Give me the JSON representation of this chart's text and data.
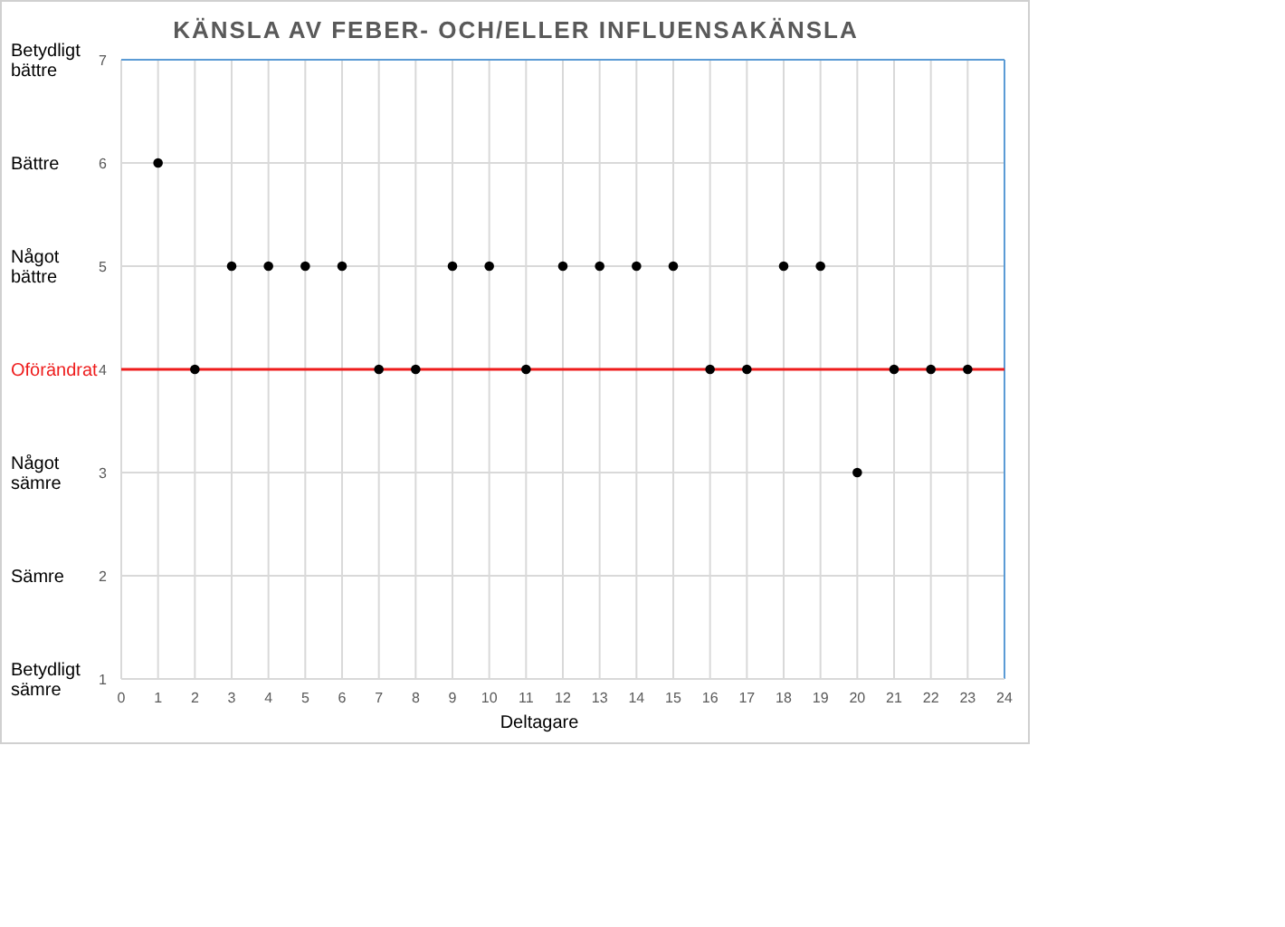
{
  "chart_data": {
    "type": "scatter",
    "title": "KÄNSLA AV FEBER- OCH/ELLER INFLUENSAKÄNSLA",
    "xlabel": "Deltagare",
    "x": [
      1,
      2,
      3,
      4,
      5,
      6,
      7,
      8,
      9,
      10,
      11,
      12,
      13,
      14,
      15,
      16,
      17,
      18,
      19,
      20,
      21,
      22,
      23
    ],
    "series": [
      {
        "color": "#000000",
        "values": [
          6,
          4,
          5,
          5,
          5,
          5,
          4,
          4,
          5,
          5,
          4,
          5,
          5,
          5,
          5,
          4,
          4,
          5,
          5,
          3,
          4,
          4,
          4
        ]
      }
    ],
    "xlim": [
      0,
      24
    ],
    "xticks": [
      0,
      1,
      2,
      3,
      4,
      5,
      6,
      7,
      8,
      9,
      10,
      11,
      12,
      13,
      14,
      15,
      16,
      17,
      18,
      19,
      20,
      21,
      22,
      23,
      24
    ],
    "ylim": [
      1,
      7
    ],
    "yticks": [
      1,
      2,
      3,
      4,
      5,
      6,
      7
    ],
    "grid": true,
    "marker": "circle",
    "ref_lines": [
      {
        "axis": "y",
        "value": 4,
        "label": "Oförändrat",
        "color": "#ee1c1c"
      }
    ],
    "annotations": [
      "Betydligt bättre",
      "Bättre",
      "Något bättre",
      "Något sämre",
      "Sämre",
      "Betydligt sämre"
    ]
  }
}
